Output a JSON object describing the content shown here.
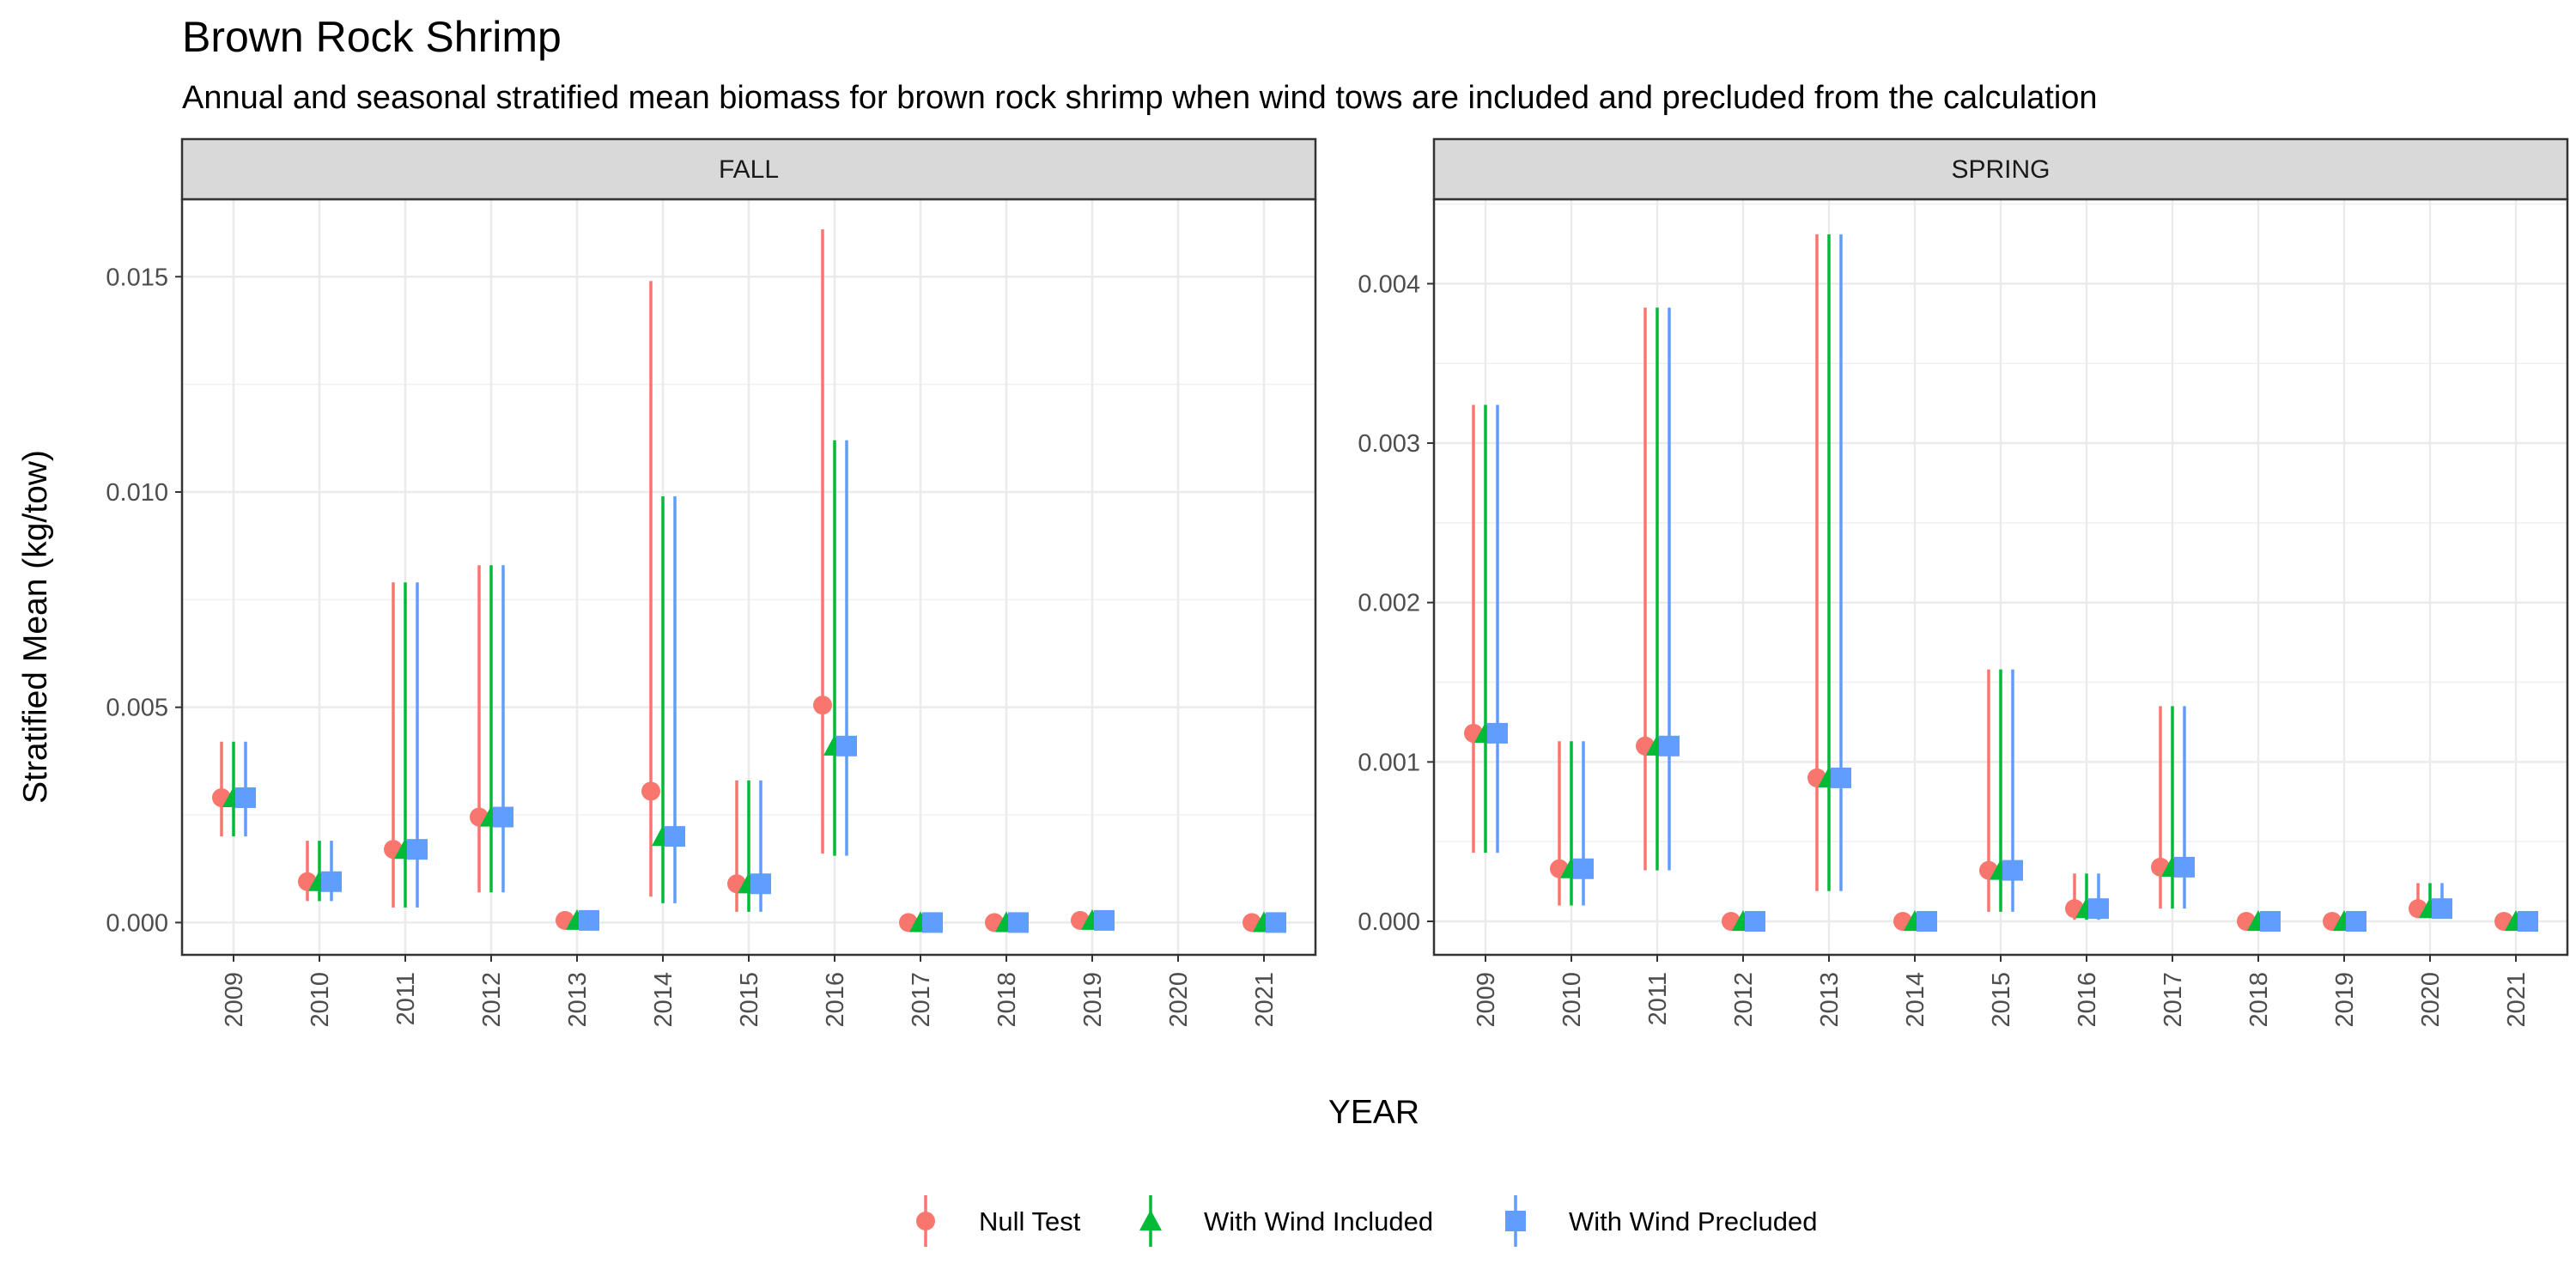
{
  "chart_data": {
    "type": "errorbar",
    "title": "Brown Rock Shrimp",
    "subtitle": "Annual and seasonal stratified mean biomass for brown rock shrimp when wind tows are included and precluded from the calculation",
    "xlabel": "YEAR",
    "ylabel": "Stratified Mean (kg/tow)",
    "legend_position": "bottom",
    "grid": true,
    "series_styles": [
      {
        "name": "Null Test",
        "color": "#F8766D",
        "marker": "circle"
      },
      {
        "name": "With Wind Included",
        "color": "#00BA38",
        "marker": "triangle"
      },
      {
        "name": "With Wind Precluded",
        "color": "#619CFF",
        "marker": "square"
      }
    ],
    "panels": [
      {
        "label": "FALL",
        "ylim": [
          -0.00075,
          0.0168
        ],
        "yticks": [
          0.0,
          0.005,
          0.01,
          0.015
        ],
        "ytick_labels": [
          "0.000",
          "0.005",
          "0.010",
          "0.015"
        ],
        "categories": [
          "2009",
          "2010",
          "2011",
          "2012",
          "2013",
          "2014",
          "2015",
          "2016",
          "2017",
          "2018",
          "2019",
          "2020",
          "2021"
        ],
        "series": [
          {
            "name": "Null Test",
            "values": [
              0.0029,
              0.00095,
              0.0017,
              0.00245,
              5e-05,
              0.00305,
              0.0009,
              0.00505,
              0.0,
              0.0,
              5e-05,
              null,
              0.0
            ],
            "lower": [
              0.002,
              0.0005,
              0.00035,
              0.0007,
              0.0,
              0.0006,
              0.00025,
              0.0016,
              0.0,
              0.0,
              0.0,
              null,
              0.0
            ],
            "upper": [
              0.0042,
              0.0019,
              0.0079,
              0.0083,
              0.0001,
              0.0149,
              0.0033,
              0.0161,
              0.0,
              0.0,
              0.0001,
              null,
              0.0
            ]
          },
          {
            "name": "With Wind Included",
            "values": [
              0.0029,
              0.00095,
              0.0017,
              0.00245,
              5e-05,
              0.002,
              0.0009,
              0.0041,
              0.0,
              0.0,
              5e-05,
              null,
              0.0
            ],
            "lower": [
              0.002,
              0.0005,
              0.00035,
              0.0007,
              0.0,
              0.00045,
              0.00025,
              0.00155,
              0.0,
              0.0,
              0.0,
              null,
              0.0
            ],
            "upper": [
              0.0042,
              0.0019,
              0.0079,
              0.0083,
              0.0001,
              0.0099,
              0.0033,
              0.0112,
              0.0,
              0.0,
              0.0001,
              null,
              0.0
            ]
          },
          {
            "name": "With Wind Precluded",
            "values": [
              0.0029,
              0.00095,
              0.0017,
              0.00245,
              5e-05,
              0.002,
              0.0009,
              0.0041,
              0.0,
              0.0,
              5e-05,
              null,
              0.0
            ],
            "lower": [
              0.002,
              0.0005,
              0.00035,
              0.0007,
              0.0,
              0.00045,
              0.00025,
              0.00155,
              0.0,
              0.0,
              0.0,
              null,
              0.0
            ],
            "upper": [
              0.0042,
              0.0019,
              0.0079,
              0.0083,
              0.0001,
              0.0099,
              0.0033,
              0.0112,
              0.0,
              0.0,
              0.0001,
              null,
              0.0
            ]
          }
        ]
      },
      {
        "label": "SPRING",
        "ylim": [
          -0.00021,
          0.00453
        ],
        "yticks": [
          0.0,
          0.001,
          0.002,
          0.003,
          0.004
        ],
        "ytick_labels": [
          "0.000",
          "0.001",
          "0.002",
          "0.003",
          "0.004"
        ],
        "categories": [
          "2009",
          "2010",
          "2011",
          "2012",
          "2013",
          "2014",
          "2015",
          "2016",
          "2017",
          "2018",
          "2019",
          "2020",
          "2021"
        ],
        "series": [
          {
            "name": "Null Test",
            "values": [
              0.00118,
              0.00033,
              0.0011,
              0.0,
              0.0009,
              0.0,
              0.00032,
              8e-05,
              0.00034,
              0.0,
              0.0,
              8e-05,
              0.0
            ],
            "lower": [
              0.00043,
              0.0001,
              0.00032,
              0.0,
              0.00019,
              0.0,
              6e-05,
              1e-05,
              8e-05,
              0.0,
              0.0,
              2e-05,
              0.0
            ],
            "upper": [
              0.00324,
              0.00113,
              0.00385,
              0.0,
              0.00431,
              0.0,
              0.00158,
              0.0003,
              0.00135,
              0.0,
              0.0,
              0.00024,
              0.0
            ]
          },
          {
            "name": "With Wind Included",
            "values": [
              0.00118,
              0.00033,
              0.0011,
              0.0,
              0.0009,
              0.0,
              0.00032,
              8e-05,
              0.00034,
              0.0,
              0.0,
              8e-05,
              0.0
            ],
            "lower": [
              0.00043,
              0.0001,
              0.00032,
              0.0,
              0.00019,
              0.0,
              6e-05,
              1e-05,
              8e-05,
              0.0,
              0.0,
              2e-05,
              0.0
            ],
            "upper": [
              0.00324,
              0.00113,
              0.00385,
              0.0,
              0.00431,
              0.0,
              0.00158,
              0.0003,
              0.00135,
              0.0,
              0.0,
              0.00024,
              0.0
            ]
          },
          {
            "name": "With Wind Precluded",
            "values": [
              0.00118,
              0.00033,
              0.0011,
              0.0,
              0.0009,
              0.0,
              0.00032,
              8e-05,
              0.00034,
              0.0,
              0.0,
              8e-05,
              0.0
            ],
            "lower": [
              0.00043,
              0.0001,
              0.00032,
              0.0,
              0.00019,
              0.0,
              6e-05,
              1e-05,
              8e-05,
              0.0,
              0.0,
              2e-05,
              0.0
            ],
            "upper": [
              0.00324,
              0.00113,
              0.00385,
              0.0,
              0.00431,
              0.0,
              0.00158,
              0.0003,
              0.00135,
              0.0,
              0.0,
              0.00024,
              0.0
            ]
          }
        ]
      }
    ]
  }
}
